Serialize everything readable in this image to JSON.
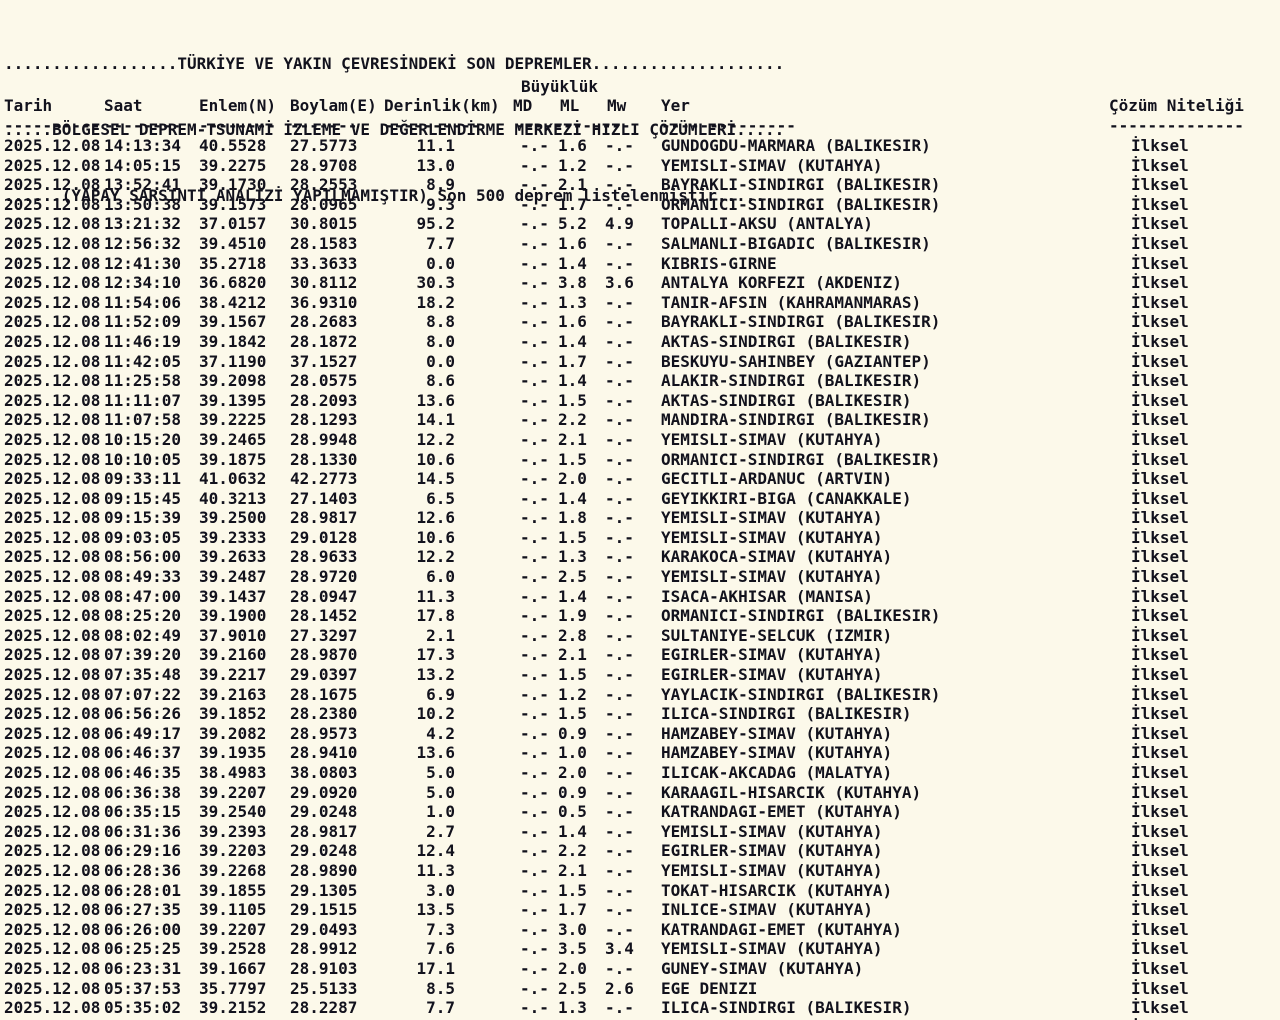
{
  "page": {
    "colors": {
      "background": "#fcf9ea",
      "text": "#12121d"
    },
    "title_lines": [
      "..................TÜRKİYE VE YAKIN ÇEVRESİNDEKİ SON DEPREMLER....................",
      ".....BÖLGESEL DEPREM-TSUNAMİ İZLEME VE DEĞERLENDİRME MERKEZİ HIZLI ÇÖZÜMLERİ.....",
      "......(YAPAY SARSINTI ANALİZİ YAPILMAMIŞTIR) Son 500 deprem listelenmiştir......"
    ],
    "magnitude_group_label": "Büyüklük",
    "columns": {
      "date": "Tarih",
      "time": "Saat",
      "lat": "Enlem(N)",
      "lon": "Boylam(E)",
      "depth": "Derinlik(km)",
      "md": "MD",
      "ml": "ML",
      "mw": "Mw",
      "place": "Yer",
      "quality": "Çözüm Niteliği"
    },
    "dashes": {
      "date": "----------",
      "time": "--------",
      "lat": "--------",
      "lon": "-------",
      "depth": "----------",
      "magnitudes": "------------",
      "place": "--------------",
      "quality": "--------------"
    }
  },
  "rows": [
    {
      "date": "2025.12.08",
      "time": "14:13:34",
      "lat": "40.5528",
      "lon": "27.5773",
      "depth": "11.1",
      "md": "-.-",
      "ml": "1.6",
      "mw": "-.-",
      "place": "GUNDOGDU-MARMARA (BALIKESIR)",
      "quality": "İlksel"
    },
    {
      "date": "2025.12.08",
      "time": "14:05:15",
      "lat": "39.2275",
      "lon": "28.9708",
      "depth": "13.0",
      "md": "-.-",
      "ml": "1.2",
      "mw": "-.-",
      "place": "YEMISLI-SIMAV (KUTAHYA)",
      "quality": "İlksel"
    },
    {
      "date": "2025.12.08",
      "time": "13:52:41",
      "lat": "39.1730",
      "lon": "28.2553",
      "depth": "8.9",
      "md": "-.-",
      "ml": "2.1",
      "mw": "-.-",
      "place": "BAYRAKLI-SINDIRGI (BALIKESIR)",
      "quality": "İlksel"
    },
    {
      "date": "2025.12.08",
      "time": "13:50:38",
      "lat": "39.1573",
      "lon": "28.0965",
      "depth": "9.3",
      "md": "-.-",
      "ml": "1.7",
      "mw": "-.-",
      "place": "ORMANICI-SINDIRGI (BALIKESIR)",
      "quality": "İlksel"
    },
    {
      "date": "2025.12.08",
      "time": "13:21:32",
      "lat": "37.0157",
      "lon": "30.8015",
      "depth": "95.2",
      "md": "-.-",
      "ml": "5.2",
      "mw": "4.9",
      "place": "TOPALLI-AKSU (ANTALYA)",
      "quality": "İlksel"
    },
    {
      "date": "2025.12.08",
      "time": "12:56:32",
      "lat": "39.4510",
      "lon": "28.1583",
      "depth": "7.7",
      "md": "-.-",
      "ml": "1.6",
      "mw": "-.-",
      "place": "SALMANLI-BIGADIC (BALIKESIR)",
      "quality": "İlksel"
    },
    {
      "date": "2025.12.08",
      "time": "12:41:30",
      "lat": "35.2718",
      "lon": "33.3633",
      "depth": "0.0",
      "md": "-.-",
      "ml": "1.4",
      "mw": "-.-",
      "place": "KIBRIS-GIRNE",
      "quality": "İlksel"
    },
    {
      "date": "2025.12.08",
      "time": "12:34:10",
      "lat": "36.6820",
      "lon": "30.8112",
      "depth": "30.3",
      "md": "-.-",
      "ml": "3.8",
      "mw": "3.6",
      "place": "ANTALYA KORFEZI (AKDENIZ)",
      "quality": "İlksel"
    },
    {
      "date": "2025.12.08",
      "time": "11:54:06",
      "lat": "38.4212",
      "lon": "36.9310",
      "depth": "18.2",
      "md": "-.-",
      "ml": "1.3",
      "mw": "-.-",
      "place": "TANIR-AFSIN (KAHRAMANMARAS)",
      "quality": "İlksel"
    },
    {
      "date": "2025.12.08",
      "time": "11:52:09",
      "lat": "39.1567",
      "lon": "28.2683",
      "depth": "8.8",
      "md": "-.-",
      "ml": "1.6",
      "mw": "-.-",
      "place": "BAYRAKLI-SINDIRGI (BALIKESIR)",
      "quality": "İlksel"
    },
    {
      "date": "2025.12.08",
      "time": "11:46:19",
      "lat": "39.1842",
      "lon": "28.1872",
      "depth": "8.0",
      "md": "-.-",
      "ml": "1.4",
      "mw": "-.-",
      "place": "AKTAS-SINDIRGI (BALIKESIR)",
      "quality": "İlksel"
    },
    {
      "date": "2025.12.08",
      "time": "11:42:05",
      "lat": "37.1190",
      "lon": "37.1527",
      "depth": "0.0",
      "md": "-.-",
      "ml": "1.7",
      "mw": "-.-",
      "place": "BESKUYU-SAHINBEY (GAZIANTEP)",
      "quality": "İlksel"
    },
    {
      "date": "2025.12.08",
      "time": "11:25:58",
      "lat": "39.2098",
      "lon": "28.0575",
      "depth": "8.6",
      "md": "-.-",
      "ml": "1.4",
      "mw": "-.-",
      "place": "ALAKIR-SINDIRGI (BALIKESIR)",
      "quality": "İlksel"
    },
    {
      "date": "2025.12.08",
      "time": "11:11:07",
      "lat": "39.1395",
      "lon": "28.2093",
      "depth": "13.6",
      "md": "-.-",
      "ml": "1.5",
      "mw": "-.-",
      "place": "AKTAS-SINDIRGI (BALIKESIR)",
      "quality": "İlksel"
    },
    {
      "date": "2025.12.08",
      "time": "11:07:58",
      "lat": "39.2225",
      "lon": "28.1293",
      "depth": "14.1",
      "md": "-.-",
      "ml": "2.2",
      "mw": "-.-",
      "place": "MANDIRA-SINDIRGI (BALIKESIR)",
      "quality": "İlksel"
    },
    {
      "date": "2025.12.08",
      "time": "10:15:20",
      "lat": "39.2465",
      "lon": "28.9948",
      "depth": "12.2",
      "md": "-.-",
      "ml": "2.1",
      "mw": "-.-",
      "place": "YEMISLI-SIMAV (KUTAHYA)",
      "quality": "İlksel"
    },
    {
      "date": "2025.12.08",
      "time": "10:10:05",
      "lat": "39.1875",
      "lon": "28.1330",
      "depth": "10.6",
      "md": "-.-",
      "ml": "1.5",
      "mw": "-.-",
      "place": "ORMANICI-SINDIRGI (BALIKESIR)",
      "quality": "İlksel"
    },
    {
      "date": "2025.12.08",
      "time": "09:33:11",
      "lat": "41.0632",
      "lon": "42.2773",
      "depth": "14.5",
      "md": "-.-",
      "ml": "2.0",
      "mw": "-.-",
      "place": "GECITLI-ARDANUC (ARTVIN)",
      "quality": "İlksel"
    },
    {
      "date": "2025.12.08",
      "time": "09:15:45",
      "lat": "40.3213",
      "lon": "27.1403",
      "depth": "6.5",
      "md": "-.-",
      "ml": "1.4",
      "mw": "-.-",
      "place": "GEYIKKIRI-BIGA (CANAKKALE)",
      "quality": "İlksel"
    },
    {
      "date": "2025.12.08",
      "time": "09:15:39",
      "lat": "39.2500",
      "lon": "28.9817",
      "depth": "12.6",
      "md": "-.-",
      "ml": "1.8",
      "mw": "-.-",
      "place": "YEMISLI-SIMAV (KUTAHYA)",
      "quality": "İlksel"
    },
    {
      "date": "2025.12.08",
      "time": "09:03:05",
      "lat": "39.2333",
      "lon": "29.0128",
      "depth": "10.6",
      "md": "-.-",
      "ml": "1.5",
      "mw": "-.-",
      "place": "YEMISLI-SIMAV (KUTAHYA)",
      "quality": "İlksel"
    },
    {
      "date": "2025.12.08",
      "time": "08:56:00",
      "lat": "39.2633",
      "lon": "28.9633",
      "depth": "12.2",
      "md": "-.-",
      "ml": "1.3",
      "mw": "-.-",
      "place": "KARAKOCA-SIMAV (KUTAHYA)",
      "quality": "İlksel"
    },
    {
      "date": "2025.12.08",
      "time": "08:49:33",
      "lat": "39.2487",
      "lon": "28.9720",
      "depth": "6.0",
      "md": "-.-",
      "ml": "2.5",
      "mw": "-.-",
      "place": "YEMISLI-SIMAV (KUTAHYA)",
      "quality": "İlksel"
    },
    {
      "date": "2025.12.08",
      "time": "08:47:00",
      "lat": "39.1437",
      "lon": "28.0947",
      "depth": "11.3",
      "md": "-.-",
      "ml": "1.4",
      "mw": "-.-",
      "place": "ISACA-AKHISAR (MANISA)",
      "quality": "İlksel"
    },
    {
      "date": "2025.12.08",
      "time": "08:25:20",
      "lat": "39.1900",
      "lon": "28.1452",
      "depth": "17.8",
      "md": "-.-",
      "ml": "1.9",
      "mw": "-.-",
      "place": "ORMANICI-SINDIRGI (BALIKESIR)",
      "quality": "İlksel"
    },
    {
      "date": "2025.12.08",
      "time": "08:02:49",
      "lat": "37.9010",
      "lon": "27.3297",
      "depth": "2.1",
      "md": "-.-",
      "ml": "2.8",
      "mw": "-.-",
      "place": "SULTANIYE-SELCUK (IZMIR)",
      "quality": "İlksel"
    },
    {
      "date": "2025.12.08",
      "time": "07:39:20",
      "lat": "39.2160",
      "lon": "28.9870",
      "depth": "17.3",
      "md": "-.-",
      "ml": "2.1",
      "mw": "-.-",
      "place": "EGIRLER-SIMAV (KUTAHYA)",
      "quality": "İlksel"
    },
    {
      "date": "2025.12.08",
      "time": "07:35:48",
      "lat": "39.2217",
      "lon": "29.0397",
      "depth": "13.2",
      "md": "-.-",
      "ml": "1.5",
      "mw": "-.-",
      "place": "EGIRLER-SIMAV (KUTAHYA)",
      "quality": "İlksel"
    },
    {
      "date": "2025.12.08",
      "time": "07:07:22",
      "lat": "39.2163",
      "lon": "28.1675",
      "depth": "6.9",
      "md": "-.-",
      "ml": "1.2",
      "mw": "-.-",
      "place": "YAYLACIK-SINDIRGI (BALIKESIR)",
      "quality": "İlksel"
    },
    {
      "date": "2025.12.08",
      "time": "06:56:26",
      "lat": "39.1852",
      "lon": "28.2380",
      "depth": "10.2",
      "md": "-.-",
      "ml": "1.5",
      "mw": "-.-",
      "place": "ILICA-SINDIRGI (BALIKESIR)",
      "quality": "İlksel"
    },
    {
      "date": "2025.12.08",
      "time": "06:49:17",
      "lat": "39.2082",
      "lon": "28.9573",
      "depth": "4.2",
      "md": "-.-",
      "ml": "0.9",
      "mw": "-.-",
      "place": "HAMZABEY-SIMAV (KUTAHYA)",
      "quality": "İlksel"
    },
    {
      "date": "2025.12.08",
      "time": "06:46:37",
      "lat": "39.1935",
      "lon": "28.9410",
      "depth": "13.6",
      "md": "-.-",
      "ml": "1.0",
      "mw": "-.-",
      "place": "HAMZABEY-SIMAV (KUTAHYA)",
      "quality": "İlksel"
    },
    {
      "date": "2025.12.08",
      "time": "06:46:35",
      "lat": "38.4983",
      "lon": "38.0803",
      "depth": "5.0",
      "md": "-.-",
      "ml": "2.0",
      "mw": "-.-",
      "place": "ILICAK-AKCADAG (MALATYA)",
      "quality": "İlksel"
    },
    {
      "date": "2025.12.08",
      "time": "06:36:38",
      "lat": "39.2207",
      "lon": "29.0920",
      "depth": "5.0",
      "md": "-.-",
      "ml": "0.9",
      "mw": "-.-",
      "place": "KARAAGIL-HISARCIK (KUTAHYA)",
      "quality": "İlksel"
    },
    {
      "date": "2025.12.08",
      "time": "06:35:15",
      "lat": "39.2540",
      "lon": "29.0248",
      "depth": "1.0",
      "md": "-.-",
      "ml": "0.5",
      "mw": "-.-",
      "place": "KATRANDAGI-EMET (KUTAHYA)",
      "quality": "İlksel"
    },
    {
      "date": "2025.12.08",
      "time": "06:31:36",
      "lat": "39.2393",
      "lon": "28.9817",
      "depth": "2.7",
      "md": "-.-",
      "ml": "1.4",
      "mw": "-.-",
      "place": "YEMISLI-SIMAV (KUTAHYA)",
      "quality": "İlksel"
    },
    {
      "date": "2025.12.08",
      "time": "06:29:16",
      "lat": "39.2203",
      "lon": "29.0248",
      "depth": "12.4",
      "md": "-.-",
      "ml": "2.2",
      "mw": "-.-",
      "place": "EGIRLER-SIMAV (KUTAHYA)",
      "quality": "İlksel"
    },
    {
      "date": "2025.12.08",
      "time": "06:28:36",
      "lat": "39.2268",
      "lon": "28.9890",
      "depth": "11.3",
      "md": "-.-",
      "ml": "2.1",
      "mw": "-.-",
      "place": "YEMISLI-SIMAV (KUTAHYA)",
      "quality": "İlksel"
    },
    {
      "date": "2025.12.08",
      "time": "06:28:01",
      "lat": "39.1855",
      "lon": "29.1305",
      "depth": "3.0",
      "md": "-.-",
      "ml": "1.5",
      "mw": "-.-",
      "place": "TOKAT-HISARCIK (KUTAHYA)",
      "quality": "İlksel"
    },
    {
      "date": "2025.12.08",
      "time": "06:27:35",
      "lat": "39.1105",
      "lon": "29.1515",
      "depth": "13.5",
      "md": "-.-",
      "ml": "1.7",
      "mw": "-.-",
      "place": "INLICE-SIMAV (KUTAHYA)",
      "quality": "İlksel"
    },
    {
      "date": "2025.12.08",
      "time": "06:26:00",
      "lat": "39.2207",
      "lon": "29.0493",
      "depth": "7.3",
      "md": "-.-",
      "ml": "3.0",
      "mw": "-.-",
      "place": "KATRANDAGI-EMET (KUTAHYA)",
      "quality": "İlksel"
    },
    {
      "date": "2025.12.08",
      "time": "06:25:25",
      "lat": "39.2528",
      "lon": "28.9912",
      "depth": "7.6",
      "md": "-.-",
      "ml": "3.5",
      "mw": "3.4",
      "place": "YEMISLI-SIMAV (KUTAHYA)",
      "quality": "İlksel"
    },
    {
      "date": "2025.12.08",
      "time": "06:23:31",
      "lat": "39.1667",
      "lon": "28.9103",
      "depth": "17.1",
      "md": "-.-",
      "ml": "2.0",
      "mw": "-.-",
      "place": "GUNEY-SIMAV (KUTAHYA)",
      "quality": "İlksel"
    },
    {
      "date": "2025.12.08",
      "time": "05:37:53",
      "lat": "35.7797",
      "lon": "25.5133",
      "depth": "8.5",
      "md": "-.-",
      "ml": "2.5",
      "mw": "2.6",
      "place": "EGE DENIZI",
      "quality": "İlksel"
    },
    {
      "date": "2025.12.08",
      "time": "05:35:02",
      "lat": "39.2152",
      "lon": "28.2287",
      "depth": "7.7",
      "md": "-.-",
      "ml": "1.3",
      "mw": "-.-",
      "place": "ILICA-SINDIRGI (BALIKESIR)",
      "quality": "İlksel"
    }
  ],
  "partial_row": {
    "quality": "İlksel"
  }
}
